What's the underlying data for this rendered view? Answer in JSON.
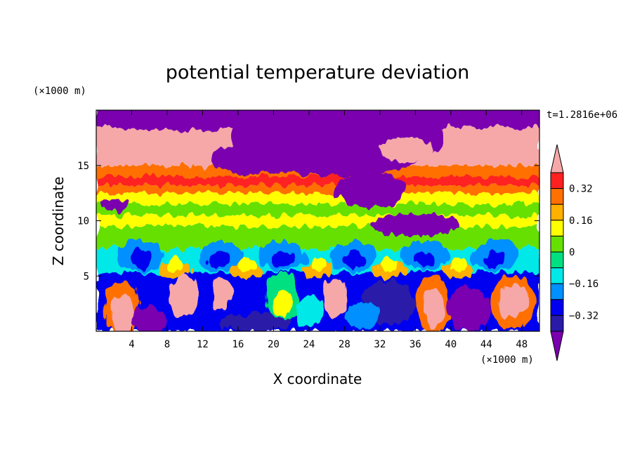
{
  "chart_data": {
    "type": "heatmap",
    "title": "potential temperature deviation",
    "xlabel": "X coordinate",
    "ylabel": "Z coordinate",
    "x_unit": "(×1000 m)",
    "y_unit": "(×1000 m)",
    "time_label": "t=1.2816e+06",
    "xlim": [
      0,
      50
    ],
    "ylim": [
      0,
      20
    ],
    "x_ticks": [
      4,
      8,
      12,
      16,
      20,
      24,
      28,
      32,
      36,
      40,
      44,
      48
    ],
    "y_ticks": [
      5,
      10,
      15
    ],
    "colorbar": {
      "levels": [
        -0.4,
        -0.32,
        -0.24,
        -0.16,
        -0.08,
        0,
        0.08,
        0.16,
        0.24,
        0.32,
        0.4
      ],
      "labels": [
        "0.32",
        "0.16",
        "0",
        "−0.16",
        "−0.32"
      ],
      "label_values": [
        0.32,
        0.16,
        0,
        -0.16,
        -0.32
      ],
      "colors": [
        "#7a00b0",
        "#2a1aa8",
        "#0000f0",
        "#0090ff",
        "#00e8e8",
        "#00e080",
        "#66e000",
        "#ffff00",
        "#ffb000",
        "#ff7000",
        "#ff2020",
        "#f6a8a8"
      ],
      "extend": "both"
    }
  }
}
